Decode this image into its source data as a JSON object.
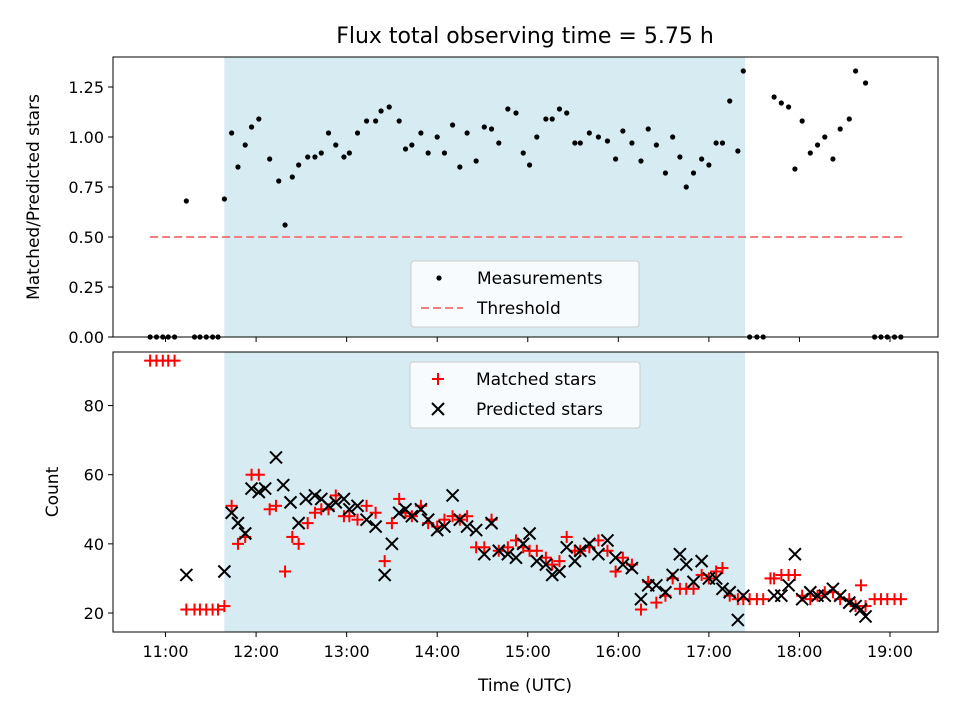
{
  "title": "Flux total observing time = 5.75 h",
  "colors": {
    "shade": "#add8e6",
    "measurement": "#000000",
    "threshold": "#f08080",
    "matched": "#ff0000",
    "predicted": "#000000"
  },
  "chart_data": [
    {
      "type": "scatter",
      "panel": "top",
      "ylabel": "Matched/Predicted stars",
      "ylim": [
        0,
        1.4
      ],
      "yticks": [
        0,
        0.25,
        0.5,
        0.75,
        1.0,
        1.25
      ],
      "ytick_labels": [
        "0.00",
        "0.25",
        "0.50",
        "0.75",
        "1.00",
        "1.25"
      ],
      "xlim": [
        10.42,
        19.53
      ],
      "xticks": [
        11,
        12,
        13,
        14,
        15,
        16,
        17,
        18,
        19
      ],
      "shaded_interval": [
        11.65,
        17.4
      ],
      "legend": {
        "position": "bottom-center",
        "entries": [
          "Measurements",
          "Threshold"
        ]
      },
      "threshold": {
        "name": "Threshold",
        "y": 0.5,
        "x": [
          10.83,
          19.17
        ]
      },
      "series": [
        {
          "name": "Measurements",
          "marker": "dot",
          "x": [
            10.83,
            10.9,
            10.97,
            11.03,
            11.1,
            11.23,
            11.32,
            11.38,
            11.45,
            11.52,
            11.58,
            11.65,
            11.73,
            11.8,
            11.88,
            11.95,
            12.03,
            12.15,
            12.25,
            12.32,
            12.4,
            12.47,
            12.57,
            12.65,
            12.72,
            12.8,
            12.88,
            12.97,
            13.03,
            13.12,
            13.22,
            13.32,
            13.38,
            13.47,
            13.58,
            13.65,
            13.72,
            13.82,
            13.9,
            14.0,
            14.08,
            14.17,
            14.25,
            14.33,
            14.43,
            14.52,
            14.6,
            14.68,
            14.78,
            14.87,
            14.95,
            15.02,
            15.1,
            15.2,
            15.27,
            15.35,
            15.43,
            15.52,
            15.58,
            15.68,
            15.78,
            15.88,
            15.97,
            16.05,
            16.15,
            16.25,
            16.33,
            16.42,
            16.52,
            16.6,
            16.68,
            16.75,
            16.83,
            16.92,
            17.0,
            17.08,
            17.15,
            17.23,
            17.32,
            17.38,
            17.45,
            17.53,
            17.6,
            17.72,
            17.8,
            17.88,
            17.95,
            18.03,
            18.12,
            18.2,
            18.28,
            18.37,
            18.45,
            18.55,
            18.62,
            18.73,
            18.83,
            18.9,
            18.97,
            19.05,
            19.12
          ],
          "y": [
            0,
            0,
            0,
            0,
            0,
            0.68,
            0,
            0,
            0,
            0,
            0,
            0.69,
            1.02,
            0.85,
            0.96,
            1.05,
            1.09,
            0.89,
            0.78,
            0.56,
            0.8,
            0.86,
            0.9,
            0.9,
            0.92,
            1.02,
            0.96,
            0.9,
            0.92,
            1.02,
            1.08,
            1.08,
            1.13,
            1.15,
            1.08,
            0.94,
            0.96,
            1.02,
            0.92,
            1.0,
            0.92,
            1.06,
            0.85,
            1.02,
            0.88,
            1.05,
            1.04,
            0.97,
            1.14,
            1.12,
            0.92,
            0.86,
            1.0,
            1.09,
            1.09,
            1.14,
            1.12,
            0.97,
            0.97,
            1.02,
            1.0,
            0.98,
            0.89,
            1.03,
            0.97,
            0.88,
            1.04,
            0.96,
            0.82,
            1.0,
            0.9,
            0.75,
            0.82,
            0.89,
            0.86,
            0.97,
            0.97,
            1.18,
            0.93,
            1.33,
            0,
            0,
            0,
            1.2,
            1.17,
            1.15,
            0.84,
            1.08,
            0.92,
            0.96,
            1.0,
            0.89,
            1.04,
            1.09,
            1.33,
            1.27,
            0,
            0,
            0,
            0,
            0
          ]
        }
      ]
    },
    {
      "type": "scatter",
      "panel": "bottom",
      "xlabel": "Time (UTC)",
      "ylabel": "Count",
      "ylim": [
        14.5,
        95.5
      ],
      "yticks": [
        20,
        40,
        60,
        80
      ],
      "ytick_labels": [
        "20",
        "40",
        "60",
        "80"
      ],
      "xlim": [
        10.42,
        19.53
      ],
      "xticks": [
        11,
        12,
        13,
        14,
        15,
        16,
        17,
        18,
        19
      ],
      "xtick_labels": [
        "11:00",
        "12:00",
        "13:00",
        "14:00",
        "15:00",
        "16:00",
        "17:00",
        "18:00",
        "19:00"
      ],
      "shaded_interval": [
        11.65,
        17.4
      ],
      "legend": {
        "position": "top-center",
        "entries": [
          "Matched stars",
          "Predicted stars"
        ]
      },
      "series": [
        {
          "name": "Matched stars",
          "marker": "plus",
          "x": [
            10.83,
            10.9,
            10.97,
            11.03,
            11.1,
            11.23,
            11.32,
            11.38,
            11.45,
            11.52,
            11.58,
            11.65,
            11.73,
            11.8,
            11.88,
            11.95,
            12.03,
            12.15,
            12.22,
            12.32,
            12.4,
            12.47,
            12.57,
            12.65,
            12.72,
            12.8,
            12.88,
            12.97,
            13.03,
            13.12,
            13.22,
            13.32,
            13.42,
            13.5,
            13.58,
            13.65,
            13.72,
            13.82,
            13.9,
            14.0,
            14.08,
            14.17,
            14.25,
            14.33,
            14.43,
            14.52,
            14.6,
            14.68,
            14.78,
            14.87,
            14.95,
            15.02,
            15.1,
            15.2,
            15.27,
            15.35,
            15.43,
            15.52,
            15.58,
            15.68,
            15.78,
            15.88,
            15.97,
            16.05,
            16.15,
            16.25,
            16.33,
            16.42,
            16.52,
            16.6,
            16.68,
            16.75,
            16.83,
            16.92,
            17.0,
            17.08,
            17.15,
            17.23,
            17.32,
            17.38,
            17.45,
            17.53,
            17.6,
            17.68,
            17.72,
            17.8,
            17.88,
            17.95,
            18.03,
            18.12,
            18.2,
            18.28,
            18.37,
            18.45,
            18.55,
            18.62,
            18.68,
            18.73,
            18.83,
            18.9,
            18.97,
            19.05,
            19.12
          ],
          "y": [
            93,
            93,
            93,
            93,
            93,
            21,
            21,
            21,
            21,
            21,
            21,
            22,
            51,
            40,
            42,
            60,
            60,
            50,
            51,
            32,
            42,
            40,
            46,
            49,
            50,
            50,
            54,
            48,
            48,
            47,
            51,
            49,
            35,
            46,
            53,
            49,
            48,
            51,
            46,
            45,
            47,
            48,
            47,
            48,
            39,
            39,
            47,
            38,
            39,
            41,
            39,
            38,
            38,
            36,
            34,
            35,
            42,
            38,
            38,
            39,
            41,
            38,
            32,
            36,
            34,
            21,
            29,
            23,
            25,
            30,
            27,
            27,
            27,
            31,
            30,
            32,
            33,
            25,
            24,
            24,
            24,
            24,
            24,
            30,
            30,
            31,
            31,
            31,
            25,
            24,
            25,
            26,
            26,
            24,
            24,
            22,
            28,
            22,
            24,
            24,
            24,
            24,
            24
          ]
        },
        {
          "name": "Predicted stars",
          "marker": "x",
          "x": [
            11.23,
            11.65,
            11.73,
            11.8,
            11.88,
            11.95,
            12.03,
            12.1,
            12.22,
            12.3,
            12.38,
            12.47,
            12.55,
            12.65,
            12.72,
            12.8,
            12.88,
            12.97,
            13.03,
            13.12,
            13.22,
            13.32,
            13.42,
            13.5,
            13.58,
            13.65,
            13.72,
            13.82,
            13.9,
            14.0,
            14.08,
            14.17,
            14.25,
            14.33,
            14.43,
            14.52,
            14.6,
            14.68,
            14.78,
            14.87,
            14.95,
            15.02,
            15.1,
            15.2,
            15.27,
            15.35,
            15.43,
            15.52,
            15.58,
            15.68,
            15.78,
            15.88,
            15.97,
            16.05,
            16.15,
            16.25,
            16.33,
            16.42,
            16.52,
            16.6,
            16.68,
            16.75,
            16.83,
            16.92,
            17.0,
            17.08,
            17.15,
            17.23,
            17.32,
            17.38,
            17.72,
            17.8,
            17.88,
            17.95,
            18.03,
            18.12,
            18.2,
            18.28,
            18.37,
            18.45,
            18.55,
            18.62,
            18.68,
            18.73
          ],
          "y": [
            31,
            32,
            49,
            46,
            43,
            56,
            55,
            56,
            65,
            57,
            52,
            46,
            53,
            54,
            53,
            51,
            52,
            53,
            50,
            51,
            47,
            45,
            31,
            40,
            49,
            50,
            48,
            50,
            47,
            44,
            45,
            54,
            47,
            45,
            44,
            37,
            46,
            38,
            37,
            36,
            40,
            43,
            35,
            34,
            31,
            32,
            39,
            35,
            38,
            40,
            37,
            41,
            36,
            34,
            33,
            24,
            28,
            28,
            26,
            31,
            37,
            34,
            29,
            35,
            30,
            30,
            27,
            26,
            18,
            25,
            25,
            25,
            28,
            37,
            24,
            26,
            25,
            25,
            27,
            25,
            23,
            22,
            21,
            19
          ]
        }
      ]
    }
  ]
}
